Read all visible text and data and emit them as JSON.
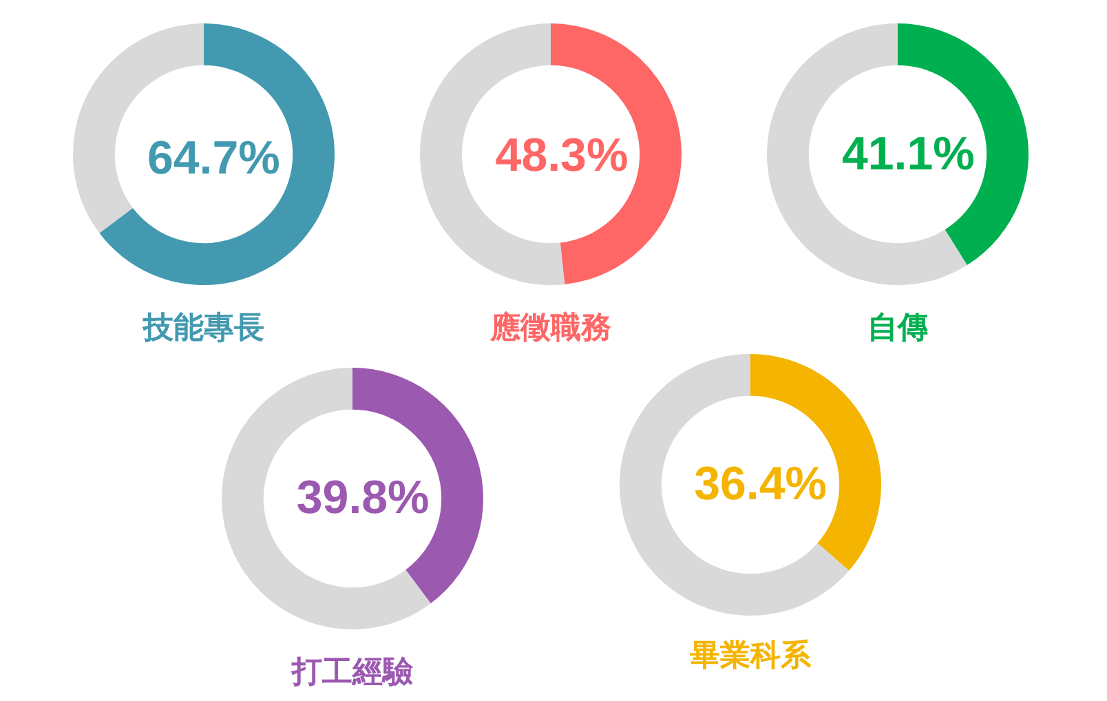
{
  "chart_data": [
    {
      "type": "donut",
      "title": "技能專長",
      "categories": [
        null,
        null
      ],
      "values": [
        64.7,
        35.3
      ],
      "colors": [
        "#4299b0",
        "#d9d9d9"
      ],
      "value_labels": [
        "64.7%",
        null
      ]
    },
    {
      "type": "donut",
      "title": "應徵職務",
      "categories": [
        null,
        null
      ],
      "values": [
        48.3,
        51.7
      ],
      "colors": [
        "#ff6666",
        "#d9d9d9"
      ],
      "value_labels": [
        "48.3%",
        null
      ]
    },
    {
      "type": "donut",
      "title": "自傳",
      "categories": [
        null,
        null
      ],
      "values": [
        41.1,
        58.9
      ],
      "colors": [
        "#00b050",
        "#d9d9d9"
      ],
      "value_labels": [
        "41.1%",
        null
      ]
    },
    {
      "type": "donut",
      "title": "打工經驗",
      "categories": [
        null,
        null
      ],
      "values": [
        39.8,
        60.2
      ],
      "colors": [
        "#9b59b0",
        "#d9d9d9"
      ],
      "value_labels": [
        "39.8%",
        null
      ]
    },
    {
      "type": "donut",
      "title": "畢業科系",
      "categories": [
        null,
        null
      ],
      "values": [
        36.4,
        63.6
      ],
      "colors": [
        "#f4b400",
        "#d9d9d9"
      ],
      "value_labels": [
        "36.4%",
        null
      ]
    }
  ]
}
